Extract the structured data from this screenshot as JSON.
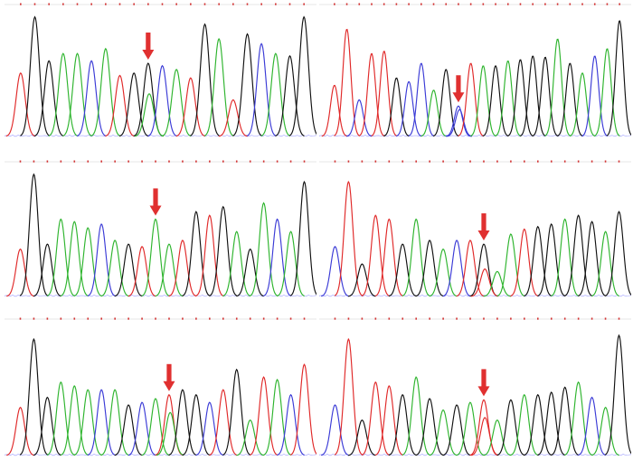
{
  "trace_colors": {
    "A": "#2db42d",
    "C": "#3a3ad6",
    "G": "#111111",
    "T": "#e02828",
    "arrow": "#e03030",
    "tick": "#d23232"
  },
  "icons": {
    "arrow": "down-arrow-icon"
  },
  "panels": [
    {
      "id": "top-left",
      "arrow_base_index": 9,
      "bases": [
        "T",
        "G",
        "G",
        "A",
        "A",
        "C",
        "A",
        "T",
        "G",
        "G",
        "C",
        "A",
        "T",
        "G",
        "A",
        "T",
        "G",
        "C",
        "A",
        "G",
        "G"
      ],
      "heights": [
        0.52,
        0.98,
        0.62,
        0.68,
        0.68,
        0.62,
        0.72,
        0.5,
        0.52,
        0.6,
        0.58,
        0.55,
        0.48,
        0.92,
        0.8,
        0.3,
        0.84,
        0.76,
        0.68,
        0.66,
        0.98
      ],
      "heterozygous": [
        {
          "base": "A",
          "height": 0.35
        }
      ]
    },
    {
      "id": "top-right",
      "arrow_base_index": 10,
      "bases": [
        "T",
        "T",
        "C",
        "T",
        "T",
        "G",
        "C",
        "C",
        "A",
        "G",
        "C",
        "T",
        "A",
        "G",
        "A",
        "G",
        "G",
        "G",
        "A",
        "G",
        "A",
        "C",
        "A",
        "G"
      ],
      "heights": [
        0.42,
        0.88,
        0.3,
        0.68,
        0.7,
        0.48,
        0.45,
        0.6,
        0.38,
        0.55,
        0.25,
        0.6,
        0.58,
        0.58,
        0.62,
        0.63,
        0.66,
        0.65,
        0.8,
        0.6,
        0.52,
        0.66,
        0.72,
        0.95
      ],
      "heterozygous": [
        {
          "base": "C",
          "height": 0.22
        }
      ]
    },
    {
      "id": "middle-left",
      "arrow_base_index": 10,
      "bases": [
        "T",
        "G",
        "G",
        "A",
        "A",
        "A",
        "C",
        "A",
        "G",
        "T",
        "A",
        "A",
        "T",
        "G",
        "T",
        "G",
        "A",
        "G",
        "A",
        "C",
        "A",
        "G"
      ],
      "heights": [
        0.38,
        0.98,
        0.42,
        0.62,
        0.6,
        0.55,
        0.58,
        0.45,
        0.42,
        0.4,
        0.62,
        0.42,
        0.45,
        0.68,
        0.65,
        0.72,
        0.52,
        0.38,
        0.75,
        0.62,
        0.52,
        0.92
      ],
      "heterozygous": []
    },
    {
      "id": "middle-right",
      "arrow_base_index": 11,
      "bases": [
        "C",
        "T",
        "G",
        "T",
        "T",
        "G",
        "A",
        "G",
        "A",
        "C",
        "T",
        "G",
        "A",
        "A",
        "T",
        "G",
        "G",
        "A",
        "G",
        "G",
        "A",
        "G"
      ],
      "heights": [
        0.4,
        0.92,
        0.26,
        0.65,
        0.62,
        0.42,
        0.62,
        0.45,
        0.38,
        0.45,
        0.45,
        0.42,
        0.2,
        0.5,
        0.54,
        0.56,
        0.58,
        0.62,
        0.65,
        0.6,
        0.52,
        0.68
      ],
      "heterozygous": [
        {
          "base": "T",
          "height": 0.22
        }
      ]
    },
    {
      "id": "bottom-left",
      "arrow_base_index": 11,
      "bases": [
        "T",
        "G",
        "G",
        "A",
        "A",
        "A",
        "C",
        "A",
        "G",
        "C",
        "A",
        "T",
        "G",
        "G",
        "C",
        "T",
        "G",
        "A",
        "T",
        "A",
        "C",
        "T"
      ],
      "heights": [
        0.38,
        0.92,
        0.46,
        0.58,
        0.55,
        0.52,
        0.52,
        0.52,
        0.4,
        0.42,
        0.45,
        0.48,
        0.52,
        0.48,
        0.42,
        0.52,
        0.68,
        0.28,
        0.62,
        0.6,
        0.48,
        0.72
      ],
      "heterozygous": [
        {
          "base": "A",
          "height": 0.34
        }
      ]
    },
    {
      "id": "bottom-right",
      "arrow_base_index": 11,
      "bases": [
        "C",
        "T",
        "G",
        "T",
        "T",
        "G",
        "A",
        "G",
        "A",
        "G",
        "A",
        "T",
        "A",
        "G",
        "A",
        "G",
        "G",
        "G",
        "A",
        "C",
        "A",
        "G"
      ],
      "heights": [
        0.4,
        0.92,
        0.28,
        0.58,
        0.55,
        0.48,
        0.62,
        0.45,
        0.36,
        0.4,
        0.42,
        0.44,
        0.28,
        0.44,
        0.48,
        0.48,
        0.5,
        0.54,
        0.58,
        0.46,
        0.38,
        0.95
      ],
      "heterozygous": [
        {
          "base": "T",
          "height": 0.3
        }
      ]
    }
  ]
}
